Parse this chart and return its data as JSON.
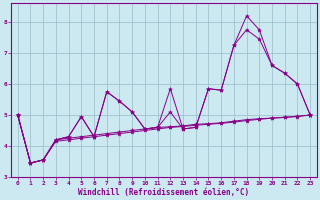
{
  "xlabel": "Windchill (Refroidissement éolien,°C)",
  "background_color": "#cce8f0",
  "line_color": "#880088",
  "grid_color": "#99bbcc",
  "xlim": [
    -0.5,
    23.5
  ],
  "ylim": [
    3.0,
    8.6
  ],
  "yticks": [
    3,
    4,
    5,
    6,
    7,
    8
  ],
  "xticks": [
    0,
    1,
    2,
    3,
    4,
    5,
    6,
    7,
    8,
    9,
    10,
    11,
    12,
    13,
    14,
    15,
    16,
    17,
    18,
    19,
    20,
    21,
    22,
    23
  ],
  "lines": [
    {
      "x": [
        0,
        1,
        2,
        3,
        4,
        5,
        6,
        7,
        8,
        9,
        10,
        11,
        12,
        13,
        14,
        15,
        16,
        17,
        18,
        19,
        20,
        21,
        22,
        23
      ],
      "y": [
        5.0,
        3.45,
        3.55,
        4.2,
        4.3,
        4.95,
        4.3,
        5.75,
        5.45,
        5.1,
        4.55,
        4.6,
        5.85,
        4.55,
        4.6,
        5.85,
        5.8,
        7.25,
        8.2,
        7.75,
        6.6,
        6.35,
        6.0,
        5.0
      ]
    },
    {
      "x": [
        0,
        1,
        2,
        3,
        4,
        5,
        6,
        7,
        8,
        9,
        10,
        11,
        12,
        13,
        14,
        15,
        16,
        17,
        18,
        19,
        20,
        21,
        22,
        23
      ],
      "y": [
        5.0,
        3.45,
        3.55,
        4.2,
        4.3,
        4.95,
        4.3,
        5.75,
        5.45,
        5.1,
        4.55,
        4.6,
        5.1,
        4.55,
        4.6,
        5.85,
        5.8,
        7.25,
        7.75,
        7.45,
        6.6,
        6.35,
        6.0,
        5.0
      ]
    },
    {
      "x": [
        0,
        1,
        2,
        3,
        4,
        5,
        6,
        7,
        8,
        9,
        10,
        11,
        12,
        13,
        14,
        15,
        16,
        17,
        18,
        19,
        20,
        21,
        22,
        23
      ],
      "y": [
        5.0,
        3.45,
        3.55,
        4.2,
        4.25,
        4.3,
        4.35,
        4.4,
        4.45,
        4.5,
        4.55,
        4.6,
        4.62,
        4.65,
        4.7,
        4.72,
        4.75,
        4.8,
        4.85,
        4.88,
        4.9,
        4.92,
        4.95,
        5.0
      ]
    },
    {
      "x": [
        0,
        1,
        2,
        3,
        4,
        5,
        6,
        7,
        8,
        9,
        10,
        11,
        12,
        13,
        14,
        15,
        16,
        17,
        18,
        19,
        20,
        21,
        22,
        23
      ],
      "y": [
        5.0,
        3.45,
        3.55,
        4.15,
        4.2,
        4.25,
        4.3,
        4.35,
        4.4,
        4.45,
        4.5,
        4.55,
        4.6,
        4.63,
        4.67,
        4.7,
        4.73,
        4.77,
        4.82,
        4.86,
        4.9,
        4.93,
        4.96,
        5.0
      ]
    }
  ]
}
